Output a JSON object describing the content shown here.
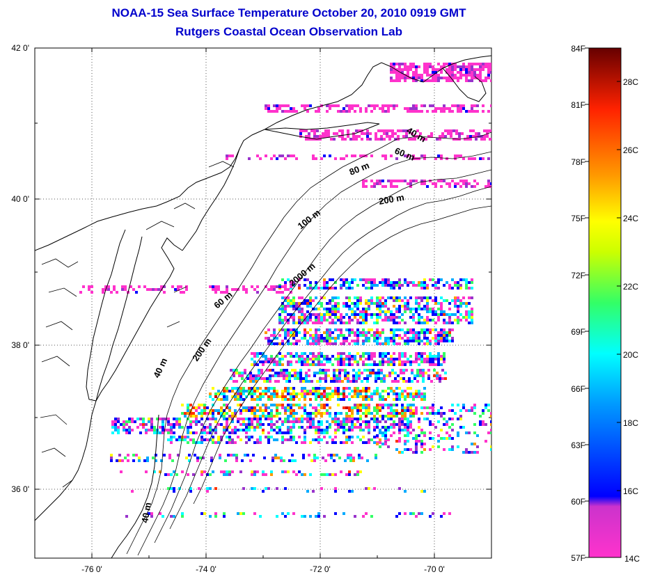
{
  "title": "NOAA-15 Sea Surface Temperature October 20, 2010 0919 GMT",
  "subtitle": "Rutgers Coastal Ocean Observation Lab",
  "map": {
    "lat_ticks": [
      "42 0'",
      "40 0'",
      "38 0'",
      "36 0'"
    ],
    "lon_ticks": [
      "-76 0'",
      "-74 0'",
      "-72 0'",
      "-70 0'"
    ],
    "lat_range": [
      35.0,
      42.0
    ],
    "lon_range": [
      -77.0,
      -69.0
    ],
    "grid": "dotted",
    "isobath_labels": [
      "40 m",
      "60 m",
      "80 m",
      "200 m",
      "100 m",
      "2000 m",
      "60 m",
      "200 m",
      "40 m",
      "40 m"
    ]
  },
  "colorbar": {
    "fahrenheit_labels": [
      "84F",
      "81F",
      "78F",
      "75F",
      "72F",
      "69F",
      "66F",
      "63F",
      "60F",
      "57F"
    ],
    "celsius_labels": [
      "28C",
      "26C",
      "24C",
      "22C",
      "20C",
      "18C",
      "16C",
      "14C"
    ],
    "colors": [
      "#ff33cc",
      "#9933cc",
      "#0000ff",
      "#00aaff",
      "#00ffff",
      "#33ff66",
      "#ffff00",
      "#ff9900",
      "#ff3300",
      "#cc0000",
      "#660000"
    ]
  }
}
